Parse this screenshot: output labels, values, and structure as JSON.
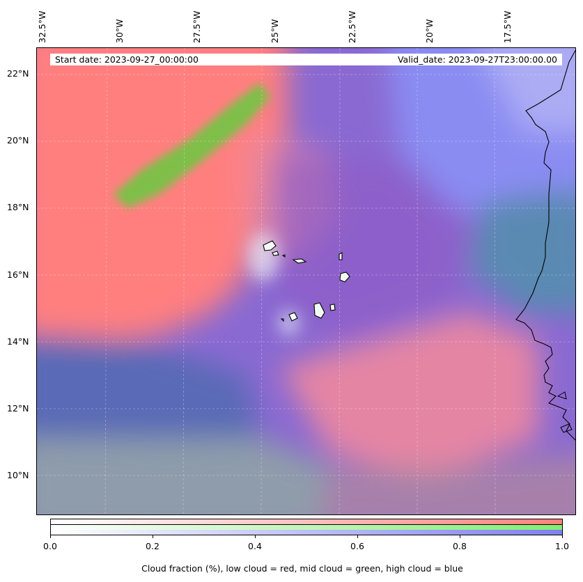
{
  "header": {
    "start_date": "Start date: 2023-09-27_00:00:00",
    "valid_date": "Valid_date: 2023-09-27T23:00:00.00"
  },
  "map": {
    "lon_labels": [
      "32.5°W",
      "30°W",
      "27.5°W",
      "25°W",
      "22.5°W",
      "20°W",
      "17.5°W"
    ],
    "lat_labels": [
      "22°N",
      "20°N",
      "18°N",
      "16°N",
      "14°N",
      "12°N",
      "10°N"
    ],
    "colors": {
      "low_cloud": "#ff7f7f",
      "mid_cloud": "#7fef6f",
      "high_cloud": "#7f7fef"
    }
  },
  "colorbar": {
    "ticks": [
      "0.0",
      "0.2",
      "0.4",
      "0.6",
      "0.8",
      "1.0"
    ],
    "label": "Cloud fraction (%), low cloud = red, mid cloud = green, high cloud = blue"
  }
}
